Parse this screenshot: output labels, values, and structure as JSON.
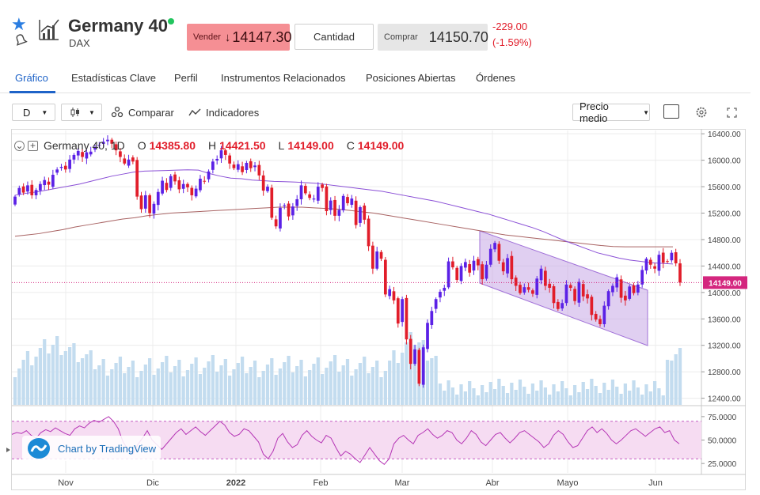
{
  "header": {
    "title": "Germany 40",
    "subtitle": "DAX",
    "sell_label": "Vender",
    "sell_arrow": "↓",
    "sell_price": "14147.30",
    "quantity_label": "Cantidad",
    "buy_label": "Comprar",
    "buy_price": "14150.70",
    "change_abs": "-229.00",
    "change_pct": "(-1.59%)"
  },
  "tabs": [
    "Gráfico",
    "Estadísticas Clave",
    "Perfil",
    "Instrumentos Relacionados",
    "Posiciones Abiertas",
    "Órdenes"
  ],
  "toolbar": {
    "interval": "D",
    "compare": "Comparar",
    "indicators": "Indicadores",
    "price_type": "Precio medio"
  },
  "legend": {
    "symbol": "Germany 40, 1D",
    "o_label": "O",
    "o": "14385.80",
    "h_label": "H",
    "h": "14421.50",
    "l_label": "L",
    "l": "14149.00",
    "c_label": "C",
    "c": "14149.00"
  },
  "badge": "Chart by TradingView",
  "colors": {
    "up": "#5b21e6",
    "down": "#e11d2a",
    "volume": "#c3dcef",
    "ma_short": "#8a4fd6",
    "ma_long": "#a86262",
    "rsi": "#b535b5",
    "channel": "#c6a8e6"
  },
  "chart_data": {
    "type": "candlestick",
    "price_axis": {
      "ticks": [
        "16400.00",
        "16000.00",
        "15600.00",
        "15200.00",
        "14800.00",
        "14400.00",
        "14000.00",
        "13600.00",
        "13200.00",
        "12800.00",
        "12400.00"
      ],
      "range": [
        12300,
        16450
      ]
    },
    "current_price": "14149.00",
    "rsi_axis": {
      "ticks": [
        "75.0000",
        "50.0000",
        "25.0000"
      ],
      "range": [
        15,
        85
      ],
      "band": [
        30,
        70
      ]
    },
    "time_axis": [
      "Nov",
      "Dic",
      "2022",
      "Feb",
      "Mar",
      "Abr",
      "Mayo",
      "Jun"
    ],
    "close": [
      15450,
      15580,
      15510,
      15620,
      15470,
      15550,
      15640,
      15700,
      15630,
      15780,
      15860,
      15900,
      15860,
      16010,
      16080,
      16140,
      16050,
      16120,
      16130,
      16200,
      16230,
      16280,
      16310,
      16250,
      16150,
      16050,
      15950,
      16010,
      15980,
      15450,
      15260,
      15470,
      15200,
      15340,
      15520,
      15690,
      15550,
      15760,
      15680,
      15560,
      15640,
      15590,
      15470,
      15570,
      15720,
      15680,
      15830,
      15980,
      16020,
      16150,
      16080,
      15950,
      15880,
      15940,
      15820,
      15960,
      15880,
      15920,
      15770,
      15540,
      15600,
      15130,
      15000,
      15280,
      15320,
      15150,
      15300,
      15410,
      15620,
      15500,
      15430,
      15420,
      15600,
      15580,
      15230,
      15390,
      15160,
      15250,
      15460,
      15350,
      15420,
      15020,
      15290,
      15100,
      14700,
      14360,
      14620,
      14510,
      13970,
      14050,
      13880,
      13530,
      13900,
      13290,
      12920,
      13140,
      12620,
      13170,
      13540,
      13720,
      13900,
      14010,
      14070,
      14470,
      14380,
      14190,
      14400,
      14460,
      14300,
      14480,
      14410,
      14200,
      14420,
      14660,
      14750,
      14480,
      14320,
      14520,
      14200,
      14100,
      13990,
      14080,
      14040,
      13980,
      14210,
      14360,
      14100,
      14070,
      13840,
      13750,
      13840,
      14120,
      14070,
      13870,
      14160,
      13940,
      13910,
      13660,
      13590,
      13520,
      13800,
      14020,
      14100,
      14230,
      13920,
      13880,
      14090,
      13990,
      14120,
      14340,
      14510,
      14420,
      14360,
      14570,
      14450,
      14470,
      14600,
      14440,
      14150
    ],
    "sma_short": [
      15470,
      15500,
      15520,
      15550,
      15580,
      15610,
      15640,
      15680,
      15720,
      15760,
      15790,
      15820,
      15835,
      15840,
      15845,
      15850,
      15855,
      15850,
      15800,
      15760,
      15730,
      15720,
      15700,
      15690,
      15680,
      15675,
      15670,
      15660,
      15650,
      15630,
      15610,
      15590,
      15570,
      15550,
      15530,
      15500,
      15470,
      15440,
      15410,
      15380,
      15340,
      15300,
      15260,
      15220,
      15180,
      15130,
      15080,
      15030,
      14980,
      14920,
      14850,
      14780,
      14720,
      14660,
      14600,
      14560,
      14520,
      14490,
      14470,
      14450,
      14440,
      14430
    ],
    "sma_long": [
      14850,
      14870,
      14890,
      14920,
      14950,
      14990,
      15020,
      15050,
      15080,
      15110,
      15130,
      15160,
      15180,
      15200,
      15210,
      15220,
      15230,
      15240,
      15250,
      15260,
      15270,
      15280,
      15290,
      15290,
      15290,
      15280,
      15270,
      15260,
      15240,
      15220,
      15200,
      15170,
      15140,
      15110,
      15080,
      15050,
      15020,
      14990,
      14960,
      14930,
      14900,
      14870,
      14850,
      14830,
      14810,
      14790,
      14770,
      14750,
      14730,
      14710,
      14695,
      14690,
      14690,
      14690,
      14690,
      14690
    ],
    "rsi": [
      56,
      58,
      57,
      60,
      55,
      52,
      58,
      61,
      59,
      63,
      60,
      57,
      55,
      62,
      65,
      63,
      68,
      71,
      69,
      72,
      75,
      70,
      62,
      48,
      40,
      35,
      45,
      52,
      60,
      50,
      45,
      40,
      46,
      52,
      58,
      62,
      56,
      60,
      64,
      59,
      55,
      60,
      65,
      70,
      66,
      58,
      54,
      56,
      62,
      60,
      54,
      48,
      35,
      30,
      38,
      52,
      57,
      48,
      42,
      45,
      55,
      60,
      54,
      50,
      47,
      55,
      52,
      42,
      33,
      38,
      35,
      30,
      26,
      34,
      42,
      35,
      28,
      24,
      30,
      46,
      52,
      55,
      50,
      46,
      55,
      58,
      62,
      56,
      52,
      55,
      60,
      58,
      50,
      46,
      52,
      60,
      56,
      48,
      44,
      50,
      56,
      58,
      52,
      47,
      52,
      58,
      60,
      56,
      52,
      48,
      42,
      46,
      55,
      60,
      56,
      48,
      42,
      44,
      52,
      60,
      64,
      58,
      62,
      57,
      50,
      46,
      50,
      55,
      60,
      62,
      58,
      54,
      58,
      62,
      64,
      58,
      60,
      50,
      46
    ]
  }
}
